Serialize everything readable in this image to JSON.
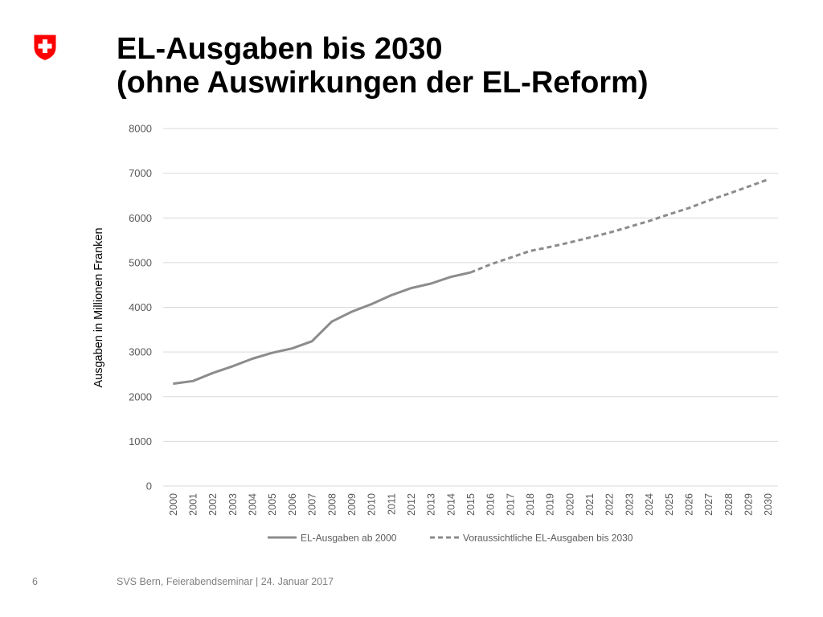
{
  "slide": {
    "title_line1": "EL-Ausgaben bis 2030",
    "title_line2": "(ohne Auswirkungen der EL-Reform)",
    "page_number": "6",
    "footer": "SVS Bern, Feierabendseminar | 24. Januar 2017",
    "logo": "swiss-cross-shield-icon"
  },
  "colors": {
    "shield": "#ff0000",
    "series": "#8c8c8c",
    "grid": "#d9d9d9",
    "tick_text": "#595959"
  },
  "chart_data": {
    "type": "line",
    "title": "",
    "xlabel": "",
    "ylabel": "Ausgaben in Millionen Franken",
    "ylim": [
      0,
      8000
    ],
    "yticks": [
      0,
      1000,
      2000,
      3000,
      4000,
      5000,
      6000,
      7000,
      8000
    ],
    "grid": true,
    "legend_position": "bottom",
    "x": [
      "2000",
      "2001",
      "2002",
      "2003",
      "2004",
      "2005",
      "2006",
      "2007",
      "2008",
      "2009",
      "2010",
      "2011",
      "2012",
      "2013",
      "2014",
      "2015",
      "2016",
      "2017",
      "2018",
      "2019",
      "2020",
      "2021",
      "2022",
      "2023",
      "2024",
      "2025",
      "2026",
      "2027",
      "2028",
      "2029",
      "2030"
    ],
    "series": [
      {
        "name": "EL-Ausgaben ab 2000",
        "style": "solid",
        "values": [
          2290,
          2350,
          2530,
          2680,
          2850,
          2980,
          3080,
          3240,
          3680,
          3900,
          4070,
          4270,
          4430,
          4530,
          4680,
          4780,
          null,
          null,
          null,
          null,
          null,
          null,
          null,
          null,
          null,
          null,
          null,
          null,
          null,
          null,
          null
        ]
      },
      {
        "name": "Voraussichtliche EL-Ausgaben bis 2030",
        "style": "dashed",
        "values": [
          null,
          null,
          null,
          null,
          null,
          null,
          null,
          null,
          null,
          null,
          null,
          null,
          null,
          null,
          null,
          4780,
          4960,
          5110,
          5260,
          5350,
          5450,
          5560,
          5670,
          5800,
          5930,
          6080,
          6220,
          6390,
          6540,
          6700,
          6860
        ]
      }
    ]
  }
}
